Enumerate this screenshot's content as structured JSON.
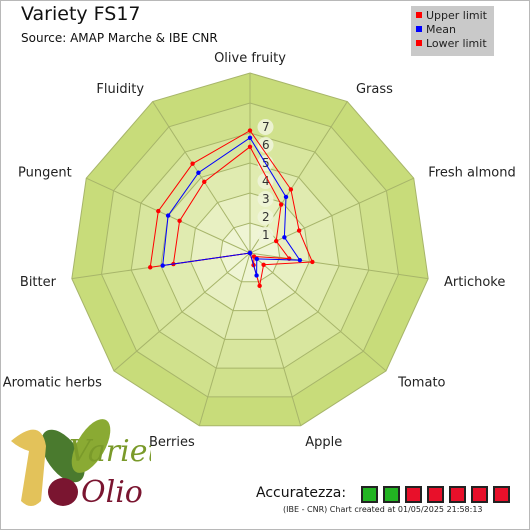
{
  "header": {
    "title": "Variety FS17",
    "source": "Source: AMAP Marche & IBE CNR"
  },
  "legend": {
    "items": [
      {
        "label": "Upper limit",
        "color": "#ff0000"
      },
      {
        "label": "Mean",
        "color": "#0000ff"
      },
      {
        "label": "Lower limit",
        "color": "#ff0000"
      }
    ]
  },
  "chart_data": {
    "type": "radar",
    "axes": [
      "Olive fruity",
      "Grass",
      "Fresh almond",
      "Artichoke",
      "Tomato",
      "Apple",
      "Berries",
      "Aromatic herbs",
      "Bitter",
      "Pungent",
      "Fluidity"
    ],
    "scale": {
      "min": 0,
      "max": 10,
      "ticks": [
        1,
        2,
        3,
        4,
        5,
        6,
        7
      ]
    },
    "series": [
      {
        "name": "Upper limit",
        "color": "#ff0000",
        "values": [
          6.8,
          4.2,
          3.0,
          3.5,
          1.0,
          1.9,
          0.0,
          0.0,
          5.6,
          5.6,
          5.9
        ]
      },
      {
        "name": "Mean",
        "color": "#0000ff",
        "values": [
          6.4,
          3.7,
          2.1,
          2.8,
          0.5,
          1.3,
          0.0,
          0.0,
          4.9,
          5.0,
          5.3
        ]
      },
      {
        "name": "Lower limit",
        "color": "#ff0000",
        "values": [
          5.9,
          3.2,
          1.6,
          2.2,
          0.3,
          0.7,
          0.0,
          0.0,
          4.3,
          4.3,
          4.7
        ]
      }
    ],
    "grid_colors": [
      "#c8dc7a",
      "#d0e18c",
      "#d8e69e",
      "#e0ebb0",
      "#e8f0c2",
      "#eff5d4"
    ]
  },
  "accuracy": {
    "label": "Accuratezza:",
    "boxes": [
      "#22b422",
      "#22b422",
      "#e8102a",
      "#e8102a",
      "#e8102a",
      "#e8102a",
      "#e8102a"
    ]
  },
  "credits": "(IBE - CNR) Chart created at 01/05/2025 21:58:13",
  "logo": {
    "line1": "Varietà",
    "line2": "Olio"
  }
}
